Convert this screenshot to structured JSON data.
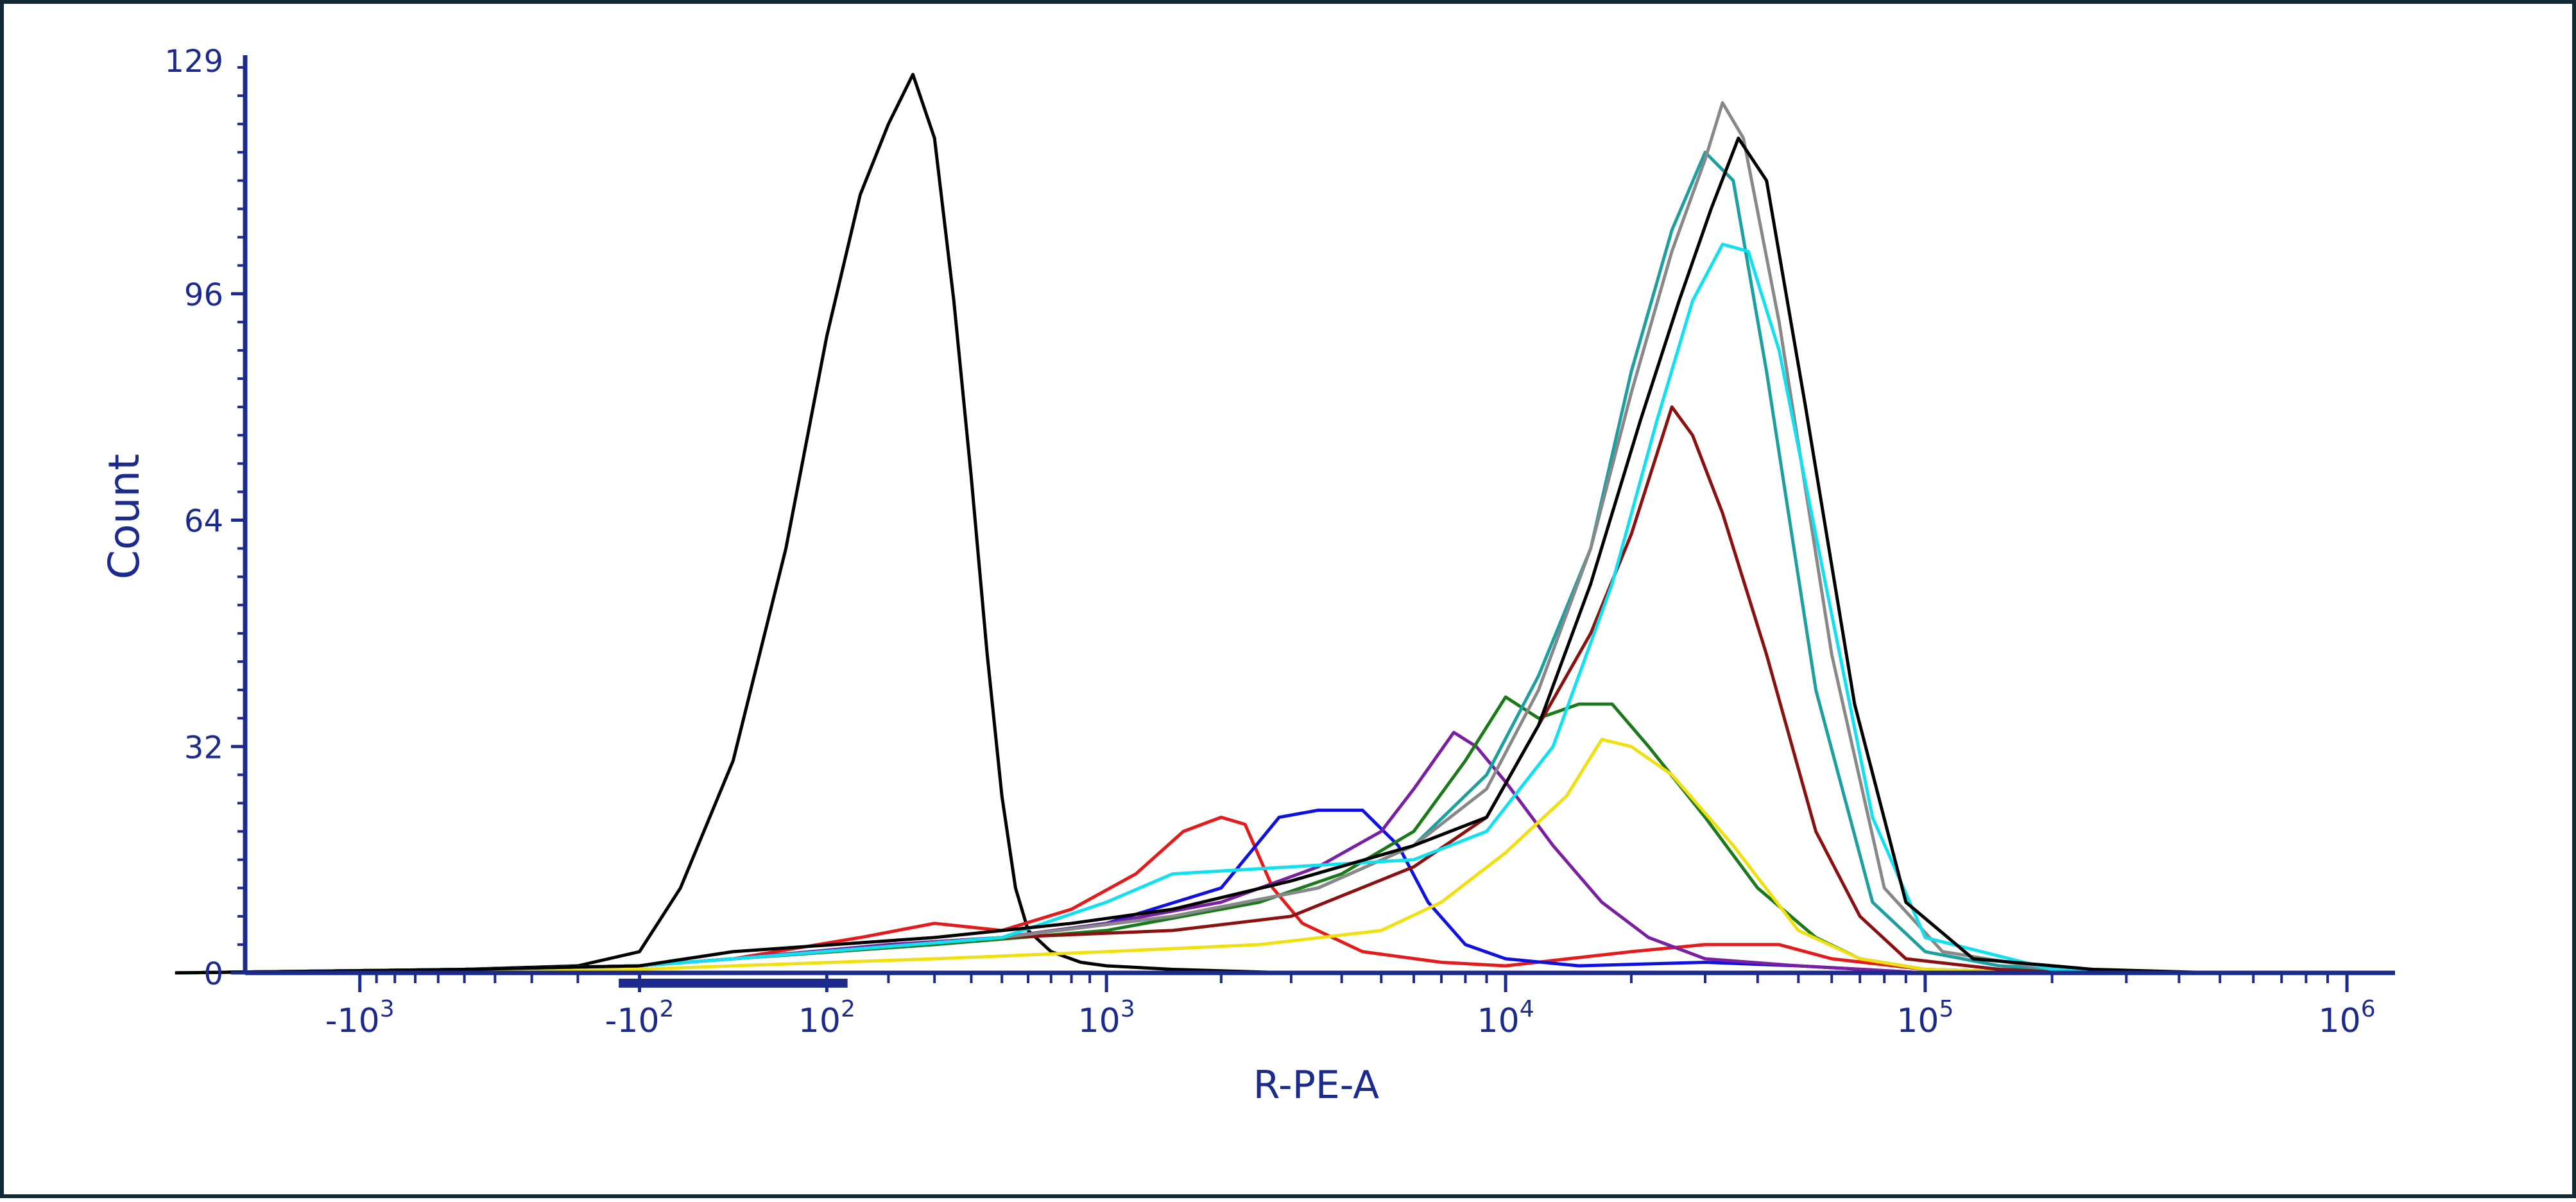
{
  "chart_data": {
    "type": "line",
    "title": "",
    "xlabel": "R-PE-A",
    "ylabel": "Count",
    "x_scale": "biexponential",
    "xlim": [
      -2000,
      1300000
    ],
    "ylim": [
      0,
      129
    ],
    "y_ticks": [
      0,
      32,
      64,
      96,
      129
    ],
    "y_tick_labels": [
      "0",
      "32",
      "64",
      "96",
      "129"
    ],
    "x_ticks": [
      {
        "value": -1000,
        "base": "-10",
        "exp": "3"
      },
      {
        "value": -100,
        "base": "-10",
        "exp": "2"
      },
      {
        "value": 100,
        "base": "10",
        "exp": "2"
      },
      {
        "value": 1000,
        "base": "10",
        "exp": "3"
      },
      {
        "value": 10000,
        "base": "10",
        "exp": "4"
      },
      {
        "value": 100000,
        "base": "10",
        "exp": "5"
      },
      {
        "value": 1000000,
        "base": "10",
        "exp": "6"
      }
    ],
    "grid": false,
    "colors": {
      "axis": "#1c2a8c",
      "frame": "#0f2a35"
    },
    "series": [
      {
        "color": "#000000",
        "values": [
          [
            -3000,
            0
          ],
          [
            -500,
            0.5
          ],
          [
            -200,
            1
          ],
          [
            -100,
            3
          ],
          [
            -50,
            12
          ],
          [
            0,
            30
          ],
          [
            50,
            60
          ],
          [
            100,
            90
          ],
          [
            150,
            110
          ],
          [
            200,
            120
          ],
          [
            250,
            127
          ],
          [
            300,
            118
          ],
          [
            350,
            95
          ],
          [
            400,
            70
          ],
          [
            450,
            45
          ],
          [
            500,
            25
          ],
          [
            550,
            12
          ],
          [
            600,
            6
          ],
          [
            700,
            3
          ],
          [
            850,
            1.5
          ],
          [
            1000,
            1
          ],
          [
            1500,
            0.5
          ],
          [
            3000,
            0
          ]
        ]
      },
      {
        "color": "#e51a1a",
        "values": [
          [
            -3000,
            0
          ],
          [
            -500,
            0.5
          ],
          [
            -100,
            1
          ],
          [
            0,
            2
          ],
          [
            150,
            5
          ],
          [
            300,
            7
          ],
          [
            500,
            6
          ],
          [
            800,
            9
          ],
          [
            1200,
            14
          ],
          [
            1600,
            20
          ],
          [
            2000,
            22
          ],
          [
            2300,
            21
          ],
          [
            2700,
            12
          ],
          [
            3200,
            7
          ],
          [
            4500,
            3
          ],
          [
            7000,
            1.5
          ],
          [
            10000,
            1
          ],
          [
            20000,
            3
          ],
          [
            30000,
            4
          ],
          [
            45000,
            4
          ],
          [
            60000,
            2
          ],
          [
            100000,
            0.5
          ],
          [
            200000,
            0
          ]
        ]
      },
      {
        "color": "#1010e0",
        "values": [
          [
            -3000,
            0
          ],
          [
            -500,
            0.5
          ],
          [
            -100,
            1
          ],
          [
            0,
            2
          ],
          [
            200,
            4
          ],
          [
            500,
            5
          ],
          [
            1000,
            7
          ],
          [
            2000,
            12
          ],
          [
            2800,
            22
          ],
          [
            3500,
            23
          ],
          [
            4500,
            23
          ],
          [
            5500,
            18
          ],
          [
            6500,
            10
          ],
          [
            8000,
            4
          ],
          [
            10000,
            2
          ],
          [
            15000,
            1
          ],
          [
            30000,
            1.5
          ],
          [
            50000,
            1
          ],
          [
            100000,
            0
          ]
        ]
      },
      {
        "color": "#7b1fa2",
        "values": [
          [
            -3000,
            0
          ],
          [
            -500,
            0.5
          ],
          [
            -100,
            1
          ],
          [
            0,
            2
          ],
          [
            200,
            4
          ],
          [
            500,
            5
          ],
          [
            1000,
            7
          ],
          [
            2000,
            10
          ],
          [
            3500,
            15
          ],
          [
            5000,
            20
          ],
          [
            6000,
            26
          ],
          [
            7500,
            34
          ],
          [
            8500,
            32
          ],
          [
            10000,
            27
          ],
          [
            13000,
            18
          ],
          [
            17000,
            10
          ],
          [
            22000,
            5
          ],
          [
            30000,
            2
          ],
          [
            50000,
            1
          ],
          [
            100000,
            0
          ]
        ]
      },
      {
        "color": "#1a7a1a",
        "values": [
          [
            -3000,
            0
          ],
          [
            -500,
            0.5
          ],
          [
            -100,
            1
          ],
          [
            0,
            2
          ],
          [
            300,
            4
          ],
          [
            1000,
            6
          ],
          [
            2500,
            10
          ],
          [
            4000,
            14
          ],
          [
            6000,
            20
          ],
          [
            8000,
            30
          ],
          [
            10000,
            39
          ],
          [
            12000,
            36
          ],
          [
            15000,
            38
          ],
          [
            18000,
            38
          ],
          [
            22000,
            32
          ],
          [
            30000,
            22
          ],
          [
            40000,
            12
          ],
          [
            55000,
            5
          ],
          [
            70000,
            2
          ],
          [
            100000,
            0.5
          ],
          [
            200000,
            0
          ]
        ]
      },
      {
        "color": "#f0e010",
        "values": [
          [
            -3000,
            0
          ],
          [
            -500,
            0.3
          ],
          [
            -100,
            0.5
          ],
          [
            0,
            1
          ],
          [
            300,
            2
          ],
          [
            1000,
            3
          ],
          [
            2500,
            4
          ],
          [
            5000,
            6
          ],
          [
            7000,
            10
          ],
          [
            10000,
            17
          ],
          [
            14000,
            25
          ],
          [
            17000,
            33
          ],
          [
            20000,
            32
          ],
          [
            25000,
            28
          ],
          [
            35000,
            18
          ],
          [
            50000,
            6
          ],
          [
            70000,
            2
          ],
          [
            100000,
            0.5
          ],
          [
            200000,
            0
          ]
        ]
      },
      {
        "color": "#8b1010",
        "values": [
          [
            -3000,
            0
          ],
          [
            -500,
            0.5
          ],
          [
            -100,
            1
          ],
          [
            0,
            2
          ],
          [
            500,
            5
          ],
          [
            1500,
            6
          ],
          [
            3000,
            8
          ],
          [
            6000,
            15
          ],
          [
            9000,
            22
          ],
          [
            12000,
            35
          ],
          [
            16000,
            48
          ],
          [
            20000,
            62
          ],
          [
            25000,
            80
          ],
          [
            28000,
            76
          ],
          [
            33000,
            65
          ],
          [
            42000,
            45
          ],
          [
            55000,
            20
          ],
          [
            70000,
            8
          ],
          [
            90000,
            2
          ],
          [
            150000,
            0.5
          ],
          [
            300000,
            0
          ]
        ]
      },
      {
        "color": "#1aa0a0",
        "values": [
          [
            -3000,
            0
          ],
          [
            -500,
            0.5
          ],
          [
            -100,
            1
          ],
          [
            0,
            2
          ],
          [
            500,
            5
          ],
          [
            1500,
            8
          ],
          [
            3500,
            12
          ],
          [
            6000,
            18
          ],
          [
            9000,
            28
          ],
          [
            12000,
            42
          ],
          [
            16000,
            60
          ],
          [
            20000,
            85
          ],
          [
            25000,
            105
          ],
          [
            30000,
            116
          ],
          [
            35000,
            112
          ],
          [
            42000,
            85
          ],
          [
            55000,
            40
          ],
          [
            75000,
            10
          ],
          [
            100000,
            3
          ],
          [
            150000,
            1
          ],
          [
            300000,
            0
          ]
        ]
      },
      {
        "color": "#888888",
        "values": [
          [
            -3000,
            0
          ],
          [
            -500,
            0.5
          ],
          [
            -100,
            1
          ],
          [
            0,
            2
          ],
          [
            500,
            5
          ],
          [
            1500,
            8
          ],
          [
            3500,
            12
          ],
          [
            6000,
            18
          ],
          [
            9000,
            26
          ],
          [
            12000,
            40
          ],
          [
            16000,
            60
          ],
          [
            20000,
            82
          ],
          [
            25000,
            102
          ],
          [
            30000,
            115
          ],
          [
            33000,
            123
          ],
          [
            37000,
            118
          ],
          [
            45000,
            92
          ],
          [
            60000,
            45
          ],
          [
            80000,
            12
          ],
          [
            110000,
            3
          ],
          [
            200000,
            0.5
          ],
          [
            400000,
            0
          ]
        ]
      },
      {
        "color": "#10e0f0",
        "values": [
          [
            -3000,
            0
          ],
          [
            -500,
            0.5
          ],
          [
            -100,
            1
          ],
          [
            0,
            2
          ],
          [
            500,
            5
          ],
          [
            1000,
            10
          ],
          [
            1500,
            14
          ],
          [
            3000,
            15
          ],
          [
            6000,
            16
          ],
          [
            9000,
            20
          ],
          [
            13000,
            32
          ],
          [
            18000,
            55
          ],
          [
            23000,
            78
          ],
          [
            28000,
            95
          ],
          [
            33000,
            103
          ],
          [
            38000,
            102
          ],
          [
            45000,
            88
          ],
          [
            58000,
            55
          ],
          [
            75000,
            22
          ],
          [
            100000,
            5
          ],
          [
            200000,
            0.5
          ],
          [
            400000,
            0
          ]
        ]
      },
      {
        "color": "#000000",
        "values": [
          [
            -3000,
            0
          ],
          [
            -500,
            0.5
          ],
          [
            -100,
            1
          ],
          [
            0,
            3
          ],
          [
            300,
            5
          ],
          [
            800,
            7
          ],
          [
            1500,
            9
          ],
          [
            3000,
            13
          ],
          [
            6000,
            18
          ],
          [
            9000,
            22
          ],
          [
            12000,
            35
          ],
          [
            16000,
            55
          ],
          [
            21000,
            78
          ],
          [
            26000,
            95
          ],
          [
            31000,
            108
          ],
          [
            36000,
            118
          ],
          [
            42000,
            112
          ],
          [
            52000,
            80
          ],
          [
            68000,
            38
          ],
          [
            90000,
            10
          ],
          [
            130000,
            2
          ],
          [
            250000,
            0.5
          ],
          [
            500000,
            0
          ]
        ]
      }
    ]
  }
}
